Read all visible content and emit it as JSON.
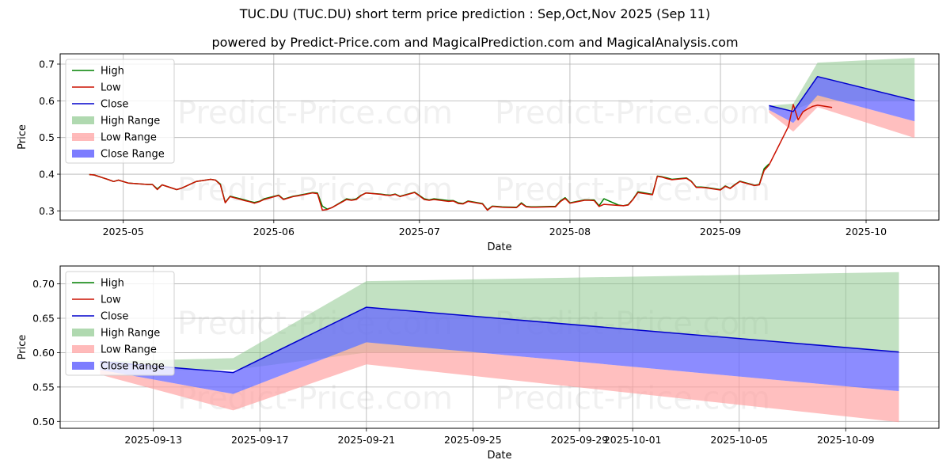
{
  "page": {
    "title": "TUC.DU (TUC.DU) short term price prediction : Sep,Oct,Nov 2025 (Sep 11)",
    "subtitle": "powered by Predict-Price.com and MagicalPrediction.com and MagicalAnalysis.com",
    "watermark": "Predict-Price.com"
  },
  "colors": {
    "high": "#008000",
    "low": "#cc1100",
    "close": "#0000cc",
    "high_range": "#8fc98f",
    "low_range": "#ff9c9c",
    "close_range": "#6666ff",
    "grid": "#b0b0b0"
  },
  "legend": {
    "placement": "top-left",
    "items": [
      {
        "label": "High",
        "kind": "line",
        "color": "#008000"
      },
      {
        "label": "Low",
        "kind": "line",
        "color": "#cc1100"
      },
      {
        "label": "Close",
        "kind": "line",
        "color": "#0000cc"
      },
      {
        "label": "High Range",
        "kind": "patch",
        "color": "#8fc98f"
      },
      {
        "label": "Low Range",
        "kind": "patch",
        "color": "#ff9c9c"
      },
      {
        "label": "Close Range",
        "kind": "patch",
        "color": "#6666ff"
      }
    ]
  },
  "chart_data": [
    {
      "type": "line",
      "xlabel": "Date",
      "ylabel": "Price",
      "xlim": [
        "2025-04-18",
        "2025-10-16"
      ],
      "ylim": [
        0.275,
        0.728
      ],
      "grid": true,
      "xticks": [
        {
          "date": "2025-05-01",
          "label": "2025-05"
        },
        {
          "date": "2025-06-01",
          "label": "2025-06"
        },
        {
          "date": "2025-07-01",
          "label": "2025-07"
        },
        {
          "date": "2025-08-01",
          "label": "2025-08"
        },
        {
          "date": "2025-09-01",
          "label": "2025-09"
        },
        {
          "date": "2025-10-01",
          "label": "2025-10"
        }
      ],
      "yticks": [
        0.3,
        0.4,
        0.5,
        0.6,
        0.7
      ],
      "ytick_labels": [
        "0.3",
        "0.4",
        "0.5",
        "0.6",
        "0.7"
      ],
      "history": {
        "dates": [
          "2025-04-24",
          "2025-04-25",
          "2025-04-28",
          "2025-04-29",
          "2025-04-30",
          "2025-05-02",
          "2025-05-06",
          "2025-05-07",
          "2025-05-08",
          "2025-05-09",
          "2025-05-12",
          "2025-05-13",
          "2025-05-14",
          "2025-05-15",
          "2025-05-16",
          "2025-05-19",
          "2025-05-20",
          "2025-05-21",
          "2025-05-22",
          "2025-05-23",
          "2025-05-26",
          "2025-05-27",
          "2025-05-28",
          "2025-05-29",
          "2025-05-30",
          "2025-06-02",
          "2025-06-03",
          "2025-06-04",
          "2025-06-05",
          "2025-06-06",
          "2025-06-09",
          "2025-06-10",
          "2025-06-11",
          "2025-06-12",
          "2025-06-13",
          "2025-06-16",
          "2025-06-17",
          "2025-06-18",
          "2025-06-19",
          "2025-06-20",
          "2025-06-23",
          "2025-06-24",
          "2025-06-25",
          "2025-06-26",
          "2025-06-27",
          "2025-06-30",
          "2025-07-01",
          "2025-07-02",
          "2025-07-03",
          "2025-07-04",
          "2025-07-07",
          "2025-07-08",
          "2025-07-09",
          "2025-07-10",
          "2025-07-11",
          "2025-07-14",
          "2025-07-15",
          "2025-07-16",
          "2025-07-17",
          "2025-07-18",
          "2025-07-21",
          "2025-07-22",
          "2025-07-23",
          "2025-07-24",
          "2025-07-25",
          "2025-07-28",
          "2025-07-29",
          "2025-07-30",
          "2025-07-31",
          "2025-08-01",
          "2025-08-04",
          "2025-08-05",
          "2025-08-06",
          "2025-08-07",
          "2025-08-08",
          "2025-08-11",
          "2025-08-12",
          "2025-08-13",
          "2025-08-14",
          "2025-08-15",
          "2025-08-18",
          "2025-08-19",
          "2025-08-20",
          "2025-08-21",
          "2025-08-22",
          "2025-08-25",
          "2025-08-26",
          "2025-08-27",
          "2025-08-28",
          "2025-08-29",
          "2025-09-01",
          "2025-09-02",
          "2025-09-03",
          "2025-09-04",
          "2025-09-05",
          "2025-09-08",
          "2025-09-09",
          "2025-09-10",
          "2025-09-11"
        ],
        "high": [
          0.399,
          0.398,
          0.385,
          0.38,
          0.384,
          0.376,
          0.372,
          0.372,
          0.36,
          0.371,
          0.358,
          0.362,
          0.368,
          0.374,
          0.38,
          0.386,
          0.384,
          0.373,
          0.323,
          0.34,
          0.33,
          0.326,
          0.323,
          0.326,
          0.333,
          0.343,
          0.332,
          0.336,
          0.34,
          0.342,
          0.35,
          0.349,
          0.313,
          0.305,
          0.309,
          0.333,
          0.33,
          0.333,
          0.343,
          0.349,
          0.346,
          0.344,
          0.343,
          0.346,
          0.34,
          0.351,
          0.342,
          0.333,
          0.33,
          0.333,
          0.328,
          0.328,
          0.322,
          0.32,
          0.327,
          0.32,
          0.303,
          0.313,
          0.312,
          0.311,
          0.31,
          0.322,
          0.312,
          0.311,
          0.311,
          0.312,
          0.312,
          0.327,
          0.336,
          0.322,
          0.33,
          0.33,
          0.33,
          0.314,
          0.333,
          0.316,
          0.314,
          0.317,
          0.332,
          0.352,
          0.345,
          0.395,
          0.393,
          0.39,
          0.386,
          0.39,
          0.381,
          0.365,
          0.365,
          0.364,
          0.358,
          0.368,
          0.362,
          0.372,
          0.381,
          0.37,
          0.372,
          0.415,
          0.428
        ],
        "low": [
          0.399,
          0.398,
          0.385,
          0.38,
          0.384,
          0.376,
          0.372,
          0.372,
          0.358,
          0.371,
          0.358,
          0.362,
          0.368,
          0.374,
          0.38,
          0.386,
          0.384,
          0.371,
          0.322,
          0.339,
          0.328,
          0.325,
          0.321,
          0.325,
          0.331,
          0.342,
          0.331,
          0.335,
          0.339,
          0.341,
          0.349,
          0.347,
          0.302,
          0.304,
          0.309,
          0.331,
          0.329,
          0.331,
          0.342,
          0.349,
          0.345,
          0.343,
          0.342,
          0.345,
          0.339,
          0.35,
          0.341,
          0.331,
          0.329,
          0.331,
          0.326,
          0.327,
          0.32,
          0.319,
          0.326,
          0.319,
          0.302,
          0.312,
          0.311,
          0.31,
          0.309,
          0.32,
          0.311,
          0.31,
          0.31,
          0.311,
          0.311,
          0.325,
          0.334,
          0.321,
          0.329,
          0.329,
          0.328,
          0.312,
          0.318,
          0.315,
          0.314,
          0.316,
          0.331,
          0.35,
          0.344,
          0.394,
          0.392,
          0.388,
          0.385,
          0.389,
          0.38,
          0.364,
          0.364,
          0.363,
          0.357,
          0.367,
          0.361,
          0.371,
          0.38,
          0.369,
          0.371,
          0.41,
          0.425
        ]
      },
      "recent": {
        "dates": [
          "2025-09-11",
          "2025-09-15",
          "2025-09-16",
          "2025-09-17",
          "2025-09-18",
          "2025-09-19",
          "2025-09-20",
          "2025-09-21",
          "2025-09-22",
          "2025-09-23",
          "2025-09-24"
        ],
        "values": [
          0.425,
          0.53,
          0.59,
          0.548,
          0.57,
          0.578,
          0.585,
          0.588,
          0.586,
          0.584,
          0.582
        ]
      },
      "forecast": {
        "dates": [
          "2025-09-11",
          "2025-09-16",
          "2025-09-21",
          "2025-10-11"
        ],
        "close": [
          0.587,
          0.571,
          0.666,
          0.601
        ],
        "high_upper": [
          0.587,
          0.592,
          0.704,
          0.717
        ],
        "high_lower": [
          0.575,
          0.575,
          0.6,
          0.6
        ],
        "close_upper": [
          0.587,
          0.571,
          0.666,
          0.601
        ],
        "close_lower": [
          0.575,
          0.54,
          0.615,
          0.544
        ],
        "low_upper": [
          0.575,
          0.54,
          0.615,
          0.544
        ],
        "low_lower": [
          0.568,
          0.516,
          0.583,
          0.499
        ]
      }
    },
    {
      "type": "area",
      "xlabel": "Date",
      "ylabel": "Price",
      "xlim": [
        "2025-09-09T12:00",
        "2025-10-12T12:00"
      ],
      "ylim": [
        0.49,
        0.726
      ],
      "grid": true,
      "xticks": [
        {
          "date": "2025-09-13",
          "label": "2025-09-13"
        },
        {
          "date": "2025-09-17",
          "label": "2025-09-17"
        },
        {
          "date": "2025-09-21",
          "label": "2025-09-21"
        },
        {
          "date": "2025-09-25",
          "label": "2025-09-25"
        },
        {
          "date": "2025-09-29",
          "label": "2025-09-29"
        },
        {
          "date": "2025-10-01",
          "label": "2025-10-01"
        },
        {
          "date": "2025-10-05",
          "label": "2025-10-05"
        },
        {
          "date": "2025-10-09",
          "label": "2025-10-09"
        }
      ],
      "yticks": [
        0.5,
        0.55,
        0.6,
        0.65,
        0.7
      ],
      "ytick_labels": [
        "0.50",
        "0.55",
        "0.60",
        "0.65",
        "0.70"
      ],
      "forecast": {
        "dates": [
          "2025-09-11",
          "2025-09-16",
          "2025-09-21",
          "2025-10-11"
        ],
        "close": [
          0.587,
          0.571,
          0.666,
          0.601
        ],
        "high_upper": [
          0.587,
          0.592,
          0.704,
          0.717
        ],
        "high_lower": [
          0.575,
          0.575,
          0.6,
          0.6
        ],
        "close_upper": [
          0.587,
          0.571,
          0.666,
          0.601
        ],
        "close_lower": [
          0.575,
          0.54,
          0.615,
          0.544
        ],
        "low_upper": [
          0.575,
          0.54,
          0.615,
          0.544
        ],
        "low_lower": [
          0.568,
          0.516,
          0.583,
          0.499
        ]
      }
    }
  ]
}
